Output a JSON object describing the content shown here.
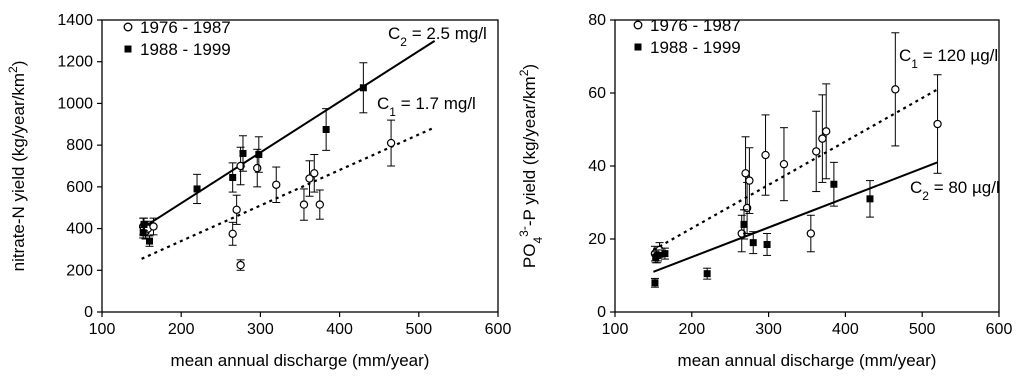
{
  "chart_data": [
    {
      "type": "scatter",
      "xlabel": "mean annual discharge (mm/year)",
      "ylabel": "nitrate-N yield (kg/year/km²)",
      "ylabel_parts": {
        "main": "nitrate-N yield (kg/year/km",
        "sup": "2",
        "tail": ")"
      },
      "xlim": [
        100,
        600
      ],
      "ylim": [
        0,
        1400
      ],
      "xticks": [
        100,
        200,
        300,
        400,
        500,
        600
      ],
      "yticks": [
        0,
        200,
        400,
        600,
        800,
        1000,
        1200,
        1400
      ],
      "grid": false,
      "legend_position": "top-left",
      "series": [
        {
          "name": "1976 - 1987",
          "marker": "open-circle",
          "points": [
            {
              "x": 152,
              "y": 410,
              "err": 40
            },
            {
              "x": 155,
              "y": 385,
              "err": 35
            },
            {
              "x": 158,
              "y": 400,
              "err": 35
            },
            {
              "x": 165,
              "y": 410,
              "err": 40
            },
            {
              "x": 265,
              "y": 375,
              "err": 55
            },
            {
              "x": 270,
              "y": 490,
              "err": 70
            },
            {
              "x": 275,
              "y": 225,
              "err": 25
            },
            {
              "x": 275,
              "y": 700,
              "err": 90
            },
            {
              "x": 296,
              "y": 690,
              "err": 90
            },
            {
              "x": 320,
              "y": 610,
              "err": 85
            },
            {
              "x": 355,
              "y": 515,
              "err": 75
            },
            {
              "x": 362,
              "y": 640,
              "err": 85
            },
            {
              "x": 368,
              "y": 665,
              "err": 90
            },
            {
              "x": 375,
              "y": 515,
              "err": 70
            },
            {
              "x": 465,
              "y": 810,
              "err": 110
            }
          ]
        },
        {
          "name": "1988 - 1999",
          "marker": "filled-square",
          "points": [
            {
              "x": 152,
              "y": 380,
              "err": 25
            },
            {
              "x": 153,
              "y": 420,
              "err": 30
            },
            {
              "x": 160,
              "y": 340,
              "err": 25
            },
            {
              "x": 220,
              "y": 590,
              "err": 70
            },
            {
              "x": 265,
              "y": 645,
              "err": 70
            },
            {
              "x": 278,
              "y": 760,
              "err": 85
            },
            {
              "x": 298,
              "y": 755,
              "err": 85
            },
            {
              "x": 383,
              "y": 875,
              "err": 100
            },
            {
              "x": 430,
              "y": 1075,
              "err": 120
            }
          ]
        }
      ],
      "lines": [
        {
          "label": "C",
          "sub": "2",
          "value": " = 2.5 mg/l",
          "style": "solid",
          "x": [
            150,
            520
          ],
          "y": [
            400,
            1300
          ]
        },
        {
          "label": "C",
          "sub": "1",
          "value": " = 1.7 mg/l",
          "style": "dotted",
          "x": [
            150,
            520
          ],
          "y": [
            255,
            885
          ]
        }
      ]
    },
    {
      "type": "scatter",
      "xlabel": "mean annual discharge (mm/year)",
      "ylabel": "PO₄³⁻-P yield (kg/year/km²)",
      "ylabel_parts": {
        "a": "PO",
        "sub": "4",
        "sup": "3-",
        "b": "-P yield (kg/year/km",
        "sup2": "2",
        "c": ")"
      },
      "xlim": [
        100,
        600
      ],
      "ylim": [
        0,
        80
      ],
      "xticks": [
        100,
        200,
        300,
        400,
        500,
        600
      ],
      "yticks": [
        0,
        20,
        40,
        60,
        80
      ],
      "grid": false,
      "legend_position": "top-left",
      "series": [
        {
          "name": "1976 - 1987",
          "marker": "open-circle",
          "points": [
            {
              "x": 152,
              "y": 16,
              "err": 2
            },
            {
              "x": 155,
              "y": 15.5,
              "err": 2
            },
            {
              "x": 158,
              "y": 17,
              "err": 2
            },
            {
              "x": 265,
              "y": 21.5,
              "err": 5
            },
            {
              "x": 270,
              "y": 38,
              "err": 10
            },
            {
              "x": 272,
              "y": 28.5,
              "err": 7
            },
            {
              "x": 275,
              "y": 36,
              "err": 9
            },
            {
              "x": 296,
              "y": 43,
              "err": 11
            },
            {
              "x": 320,
              "y": 40.5,
              "err": 10
            },
            {
              "x": 355,
              "y": 21.5,
              "err": 5
            },
            {
              "x": 362,
              "y": 44,
              "err": 11
            },
            {
              "x": 370,
              "y": 47.5,
              "err": 12
            },
            {
              "x": 375,
              "y": 49.5,
              "err": 13
            },
            {
              "x": 465,
              "y": 61,
              "err": 15.5
            },
            {
              "x": 520,
              "y": 51.5,
              "err": 13.5
            }
          ]
        },
        {
          "name": "1988 - 1999",
          "marker": "filled-square",
          "points": [
            {
              "x": 152,
              "y": 8,
              "err": 1.2
            },
            {
              "x": 153,
              "y": 15,
              "err": 1.5
            },
            {
              "x": 156,
              "y": 15.5,
              "err": 1.5
            },
            {
              "x": 165,
              "y": 16,
              "err": 1.5
            },
            {
              "x": 220,
              "y": 10.5,
              "err": 1.5
            },
            {
              "x": 268,
              "y": 24,
              "err": 4
            },
            {
              "x": 280,
              "y": 19,
              "err": 3
            },
            {
              "x": 298,
              "y": 18.5,
              "err": 3
            },
            {
              "x": 385,
              "y": 35,
              "err": 6
            },
            {
              "x": 432,
              "y": 31,
              "err": 5
            }
          ]
        }
      ],
      "lines": [
        {
          "label": "C",
          "sub": "1",
          "value": " = 120 µg/l",
          "style": "dotted",
          "x": [
            150,
            520
          ],
          "y": [
            17,
            61
          ]
        },
        {
          "label": "C",
          "sub": "2",
          "value": " = 80 µg/l",
          "style": "solid",
          "x": [
            150,
            520
          ],
          "y": [
            11,
            41
          ]
        }
      ]
    }
  ]
}
